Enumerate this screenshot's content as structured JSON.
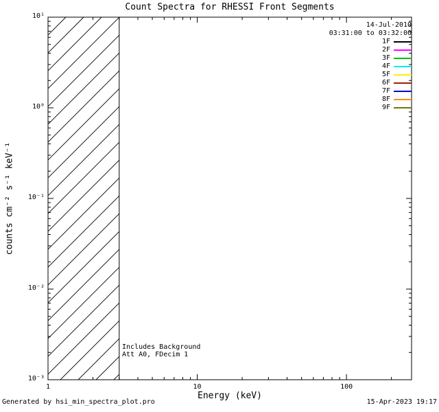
{
  "chart_data": {
    "type": "line",
    "title": "Count Spectra for RHESSI Front Segments",
    "xlabel": "Energy (keV)",
    "ylabel": "counts cm⁻² s⁻¹ keV⁻¹",
    "xscale": "log",
    "yscale": "log",
    "xlim": [
      1,
      273
    ],
    "ylim": [
      0.001,
      10
    ],
    "x_ticks": [
      1,
      10,
      100
    ],
    "x_tick_labels": [
      "1",
      "10",
      "100"
    ],
    "y_ticks": [
      0.001,
      0.01,
      0.1,
      1,
      10
    ],
    "y_tick_labels": [
      "10⁻³",
      "10⁻²",
      "10⁻¹",
      "10⁰",
      "10¹"
    ],
    "grid": false,
    "legend_position": "top-right",
    "header": {
      "date": "14-Jul-2010",
      "time_range": "03:31:00 to 03:32:00"
    },
    "background_region": {
      "x0": 1,
      "x1": 3,
      "style": "diagonal-hatch"
    },
    "series": [
      {
        "name": "1F",
        "color": "#000000",
        "values": []
      },
      {
        "name": "2F",
        "color": "#ff00ff",
        "values": []
      },
      {
        "name": "3F",
        "color": "#00c000",
        "values": []
      },
      {
        "name": "4F",
        "color": "#00e8ff",
        "values": []
      },
      {
        "name": "5F",
        "color": "#ffee00",
        "values": []
      },
      {
        "name": "6F",
        "color": "#a02000",
        "values": []
      },
      {
        "name": "7F",
        "color": "#0000d0",
        "values": []
      },
      {
        "name": "8F",
        "color": "#ff8c00",
        "values": []
      },
      {
        "name": "9F",
        "color": "#6e7b00",
        "values": []
      }
    ],
    "annotations": [
      "Includes Background",
      "Att A0, FDecim 1"
    ]
  },
  "footer": {
    "generated_by": "Generated by hsi_min_spectra_plot.pro",
    "timestamp": "15-Apr-2023 19:17"
  }
}
